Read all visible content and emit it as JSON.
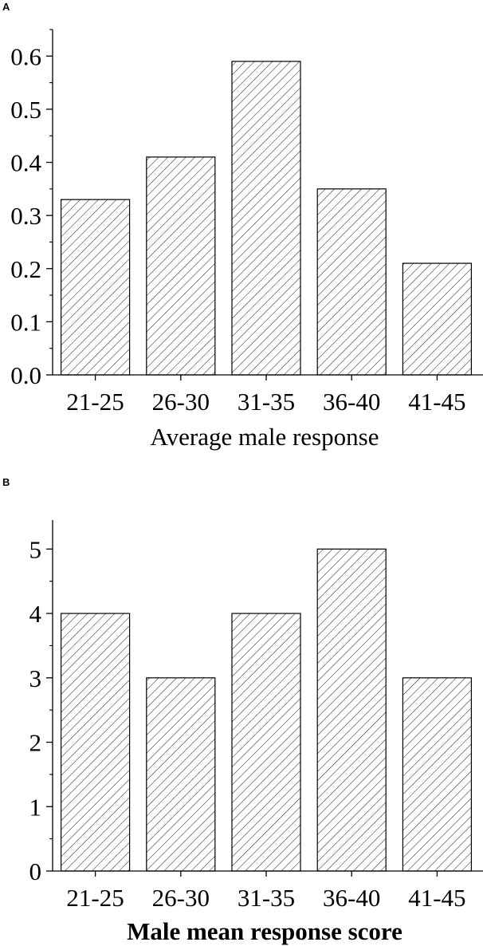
{
  "panels": [
    {
      "letter": "A",
      "xlabel": "Average male response",
      "xlabel_bold": false
    },
    {
      "letter": "B",
      "xlabel": "Male mean response score",
      "xlabel_bold": true
    }
  ],
  "chart_data": [
    {
      "type": "bar",
      "categories": [
        "21-25",
        "26-30",
        "31-35",
        "36-40",
        "41-45"
      ],
      "values": [
        0.33,
        0.41,
        0.59,
        0.35,
        0.21
      ],
      "xlabel": "Average male response",
      "ylabel": "",
      "ylim": [
        0,
        0.65
      ],
      "yticks": [
        "0.0",
        "0.1",
        "0.2",
        "0.3",
        "0.4",
        "0.5",
        "0.6"
      ],
      "bar_fill": "diagonal hatch",
      "grid": false
    },
    {
      "type": "bar",
      "categories": [
        "21-25",
        "26-30",
        "31-35",
        "36-40",
        "41-45"
      ],
      "values": [
        4,
        3,
        4,
        5,
        3
      ],
      "xlabel": "Male mean response score",
      "ylabel": "",
      "ylim": [
        0,
        5.45
      ],
      "yticks": [
        "0",
        "1",
        "2",
        "3",
        "4",
        "5"
      ],
      "bar_fill": "diagonal hatch",
      "grid": false
    }
  ]
}
